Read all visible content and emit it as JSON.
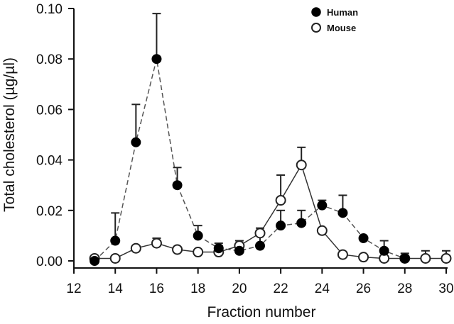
{
  "chart_data": {
    "type": "line",
    "title": "",
    "xlabel": "Fraction number",
    "ylabel": "Total cholesterol (µg/µl)",
    "xlim": [
      12,
      30
    ],
    "ylim": [
      0,
      0.1
    ],
    "xticks": [
      12,
      14,
      16,
      18,
      20,
      22,
      24,
      26,
      28,
      30
    ],
    "xtick_labels": [
      "12",
      "14",
      "16",
      "18",
      "20",
      "22",
      "24",
      "26",
      "28",
      "30"
    ],
    "yticks": [
      0.0,
      0.02,
      0.04,
      0.06,
      0.08,
      0.1
    ],
    "ytick_labels": [
      "0.00",
      "0.02",
      "0.04",
      "0.06",
      "0.08",
      "0.10"
    ],
    "grid": false,
    "legend_position": "upper right",
    "x": [
      13,
      14,
      15,
      16,
      17,
      18,
      19,
      20,
      21,
      22,
      23,
      24,
      25,
      26,
      27,
      28,
      29,
      30
    ],
    "series": [
      {
        "name": "Human",
        "marker": "filled-circle",
        "line_style": "dashed",
        "x": [
          13,
          14,
          15,
          16,
          17,
          18,
          19,
          20,
          21,
          22,
          23,
          24,
          25,
          26,
          27,
          28
        ],
        "values": [
          0.0,
          0.008,
          0.047,
          0.08,
          0.03,
          0.01,
          0.005,
          0.004,
          0.006,
          0.014,
          0.015,
          0.022,
          0.019,
          0.009,
          0.004,
          0.001
        ],
        "error_upper": [
          0.0,
          0.019,
          0.062,
          0.098,
          0.037,
          0.014,
          0.007,
          0.006,
          0.01,
          0.02,
          0.02,
          0.024,
          0.026,
          0.009,
          0.008,
          0.002
        ]
      },
      {
        "name": "Mouse",
        "marker": "open-circle",
        "line_style": "solid",
        "x": [
          13,
          14,
          15,
          16,
          17,
          18,
          19,
          20,
          21,
          22,
          23,
          24,
          25,
          26,
          27,
          28,
          29,
          30
        ],
        "values": [
          0.001,
          0.001,
          0.005,
          0.007,
          0.0045,
          0.0035,
          0.0035,
          0.006,
          0.011,
          0.024,
          0.038,
          0.012,
          0.0025,
          0.0015,
          0.001,
          0.001,
          0.001,
          0.001
        ],
        "error_upper": [
          0.001,
          0.001,
          0.005,
          0.009,
          0.0045,
          0.0035,
          0.006,
          0.008,
          0.013,
          0.034,
          0.045,
          0.013,
          0.0025,
          0.0015,
          0.001,
          0.003,
          0.004,
          0.004
        ]
      }
    ]
  },
  "legend": {
    "items": [
      {
        "label": "Human"
      },
      {
        "label": "Mouse"
      }
    ]
  }
}
